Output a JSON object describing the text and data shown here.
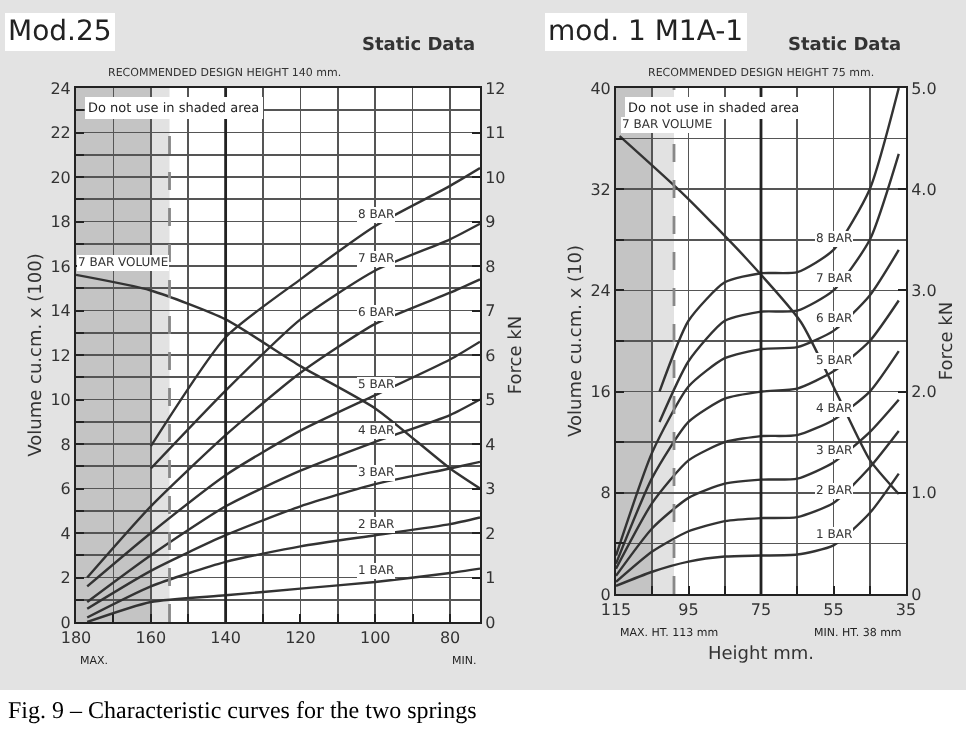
{
  "chart_data": [
    {
      "type": "line",
      "title": "Mod.25",
      "subtitle": "Static Data",
      "ylabel": "Volume cu.cm. x (100)",
      "y2label": "Force kN",
      "xlim": [
        180,
        72
      ],
      "xticks": [
        180,
        {
          "value": 170,
          "label": null
        },
        160,
        {
          "value": 150,
          "label": null
        },
        140,
        {
          "value": 130,
          "label": null
        },
        120,
        {
          "value": 110,
          "label": null
        },
        100,
        {
          "value": 90,
          "label": null
        },
        80
      ],
      "ylim": [
        0,
        24
      ],
      "yticks": [
        0,
        {
          "value": 1,
          "label": null
        },
        2,
        {
          "value": 3,
          "label": null
        },
        4,
        {
          "value": 5,
          "label": null
        },
        6,
        {
          "value": 7,
          "label": null
        },
        8,
        {
          "value": 9,
          "label": null
        },
        10,
        {
          "value": 11,
          "label": null
        },
        12,
        {
          "value": 13,
          "label": null
        },
        14,
        {
          "value": 15,
          "label": null
        },
        16,
        {
          "value": 17,
          "label": null
        },
        18,
        {
          "value": 19,
          "label": null
        },
        20,
        {
          "value": 21,
          "label": null
        },
        22,
        {
          "value": 23,
          "label": null
        },
        24
      ],
      "y2lim": [
        0,
        12
      ],
      "y2ticks": [
        0,
        1,
        2,
        3,
        4,
        5,
        6,
        7,
        8,
        9,
        10,
        11,
        12
      ],
      "grid": true,
      "series": [
        {
          "name": "7 BAR VOLUME",
          "color": "#333333",
          "axis": "y",
          "x": [
            180,
            160,
            140,
            120,
            100,
            80,
            72
          ],
          "values": [
            15.6,
            14.9,
            13.6,
            11.5,
            9.6,
            6.9,
            6.0
          ]
        },
        {
          "name": "1 BAR",
          "color": "#333333",
          "axis": "y2",
          "x": [
            177,
            160,
            140,
            120,
            100,
            80,
            72
          ],
          "values": [
            0.0,
            0.45,
            0.6,
            0.75,
            0.9,
            1.1,
            1.2
          ]
        },
        {
          "name": "2 BAR",
          "color": "#333333",
          "axis": "y2",
          "x": [
            177,
            160,
            140,
            120,
            100,
            80,
            72
          ],
          "values": [
            0.1,
            0.8,
            1.35,
            1.7,
            1.95,
            2.2,
            2.35
          ]
        },
        {
          "name": "3 BAR",
          "color": "#333333",
          "axis": "y2",
          "x": [
            177,
            160,
            140,
            120,
            100,
            80,
            72
          ],
          "values": [
            0.3,
            1.15,
            1.95,
            2.6,
            3.1,
            3.45,
            3.6
          ]
        },
        {
          "name": "4 BAR",
          "color": "#333333",
          "axis": "y2",
          "x": [
            177,
            160,
            140,
            120,
            100,
            80,
            72
          ],
          "values": [
            0.45,
            1.5,
            2.6,
            3.4,
            4.05,
            4.65,
            5.0
          ]
        },
        {
          "name": "5 BAR",
          "color": "#333333",
          "axis": "y2",
          "x": [
            177,
            160,
            140,
            120,
            100,
            80,
            72
          ],
          "values": [
            0.8,
            2.0,
            3.3,
            4.3,
            5.1,
            5.9,
            6.3
          ]
        },
        {
          "name": "6 BAR",
          "color": "#333333",
          "axis": "y2",
          "x": [
            177,
            160,
            140,
            120,
            100,
            80,
            72
          ],
          "values": [
            1.0,
            2.6,
            4.2,
            5.6,
            6.7,
            7.4,
            7.7
          ]
        },
        {
          "name": "7 BAR",
          "color": "#333333",
          "axis": "y2",
          "x": [
            160,
            140,
            120,
            100,
            80,
            72
          ],
          "values": [
            3.45,
            5.2,
            6.8,
            7.9,
            8.6,
            8.95
          ]
        },
        {
          "name": "8 BAR",
          "color": "#333333",
          "axis": "y2",
          "x": [
            160,
            140,
            120,
            100,
            80,
            72
          ],
          "values": [
            3.95,
            6.4,
            7.7,
            8.9,
            9.8,
            10.2
          ]
        }
      ],
      "bands": [
        {
          "axis": "x",
          "from": 180,
          "to": 160,
          "label": "Do not use in shaded area",
          "color": "#c4c4c4"
        },
        {
          "axis": "x",
          "from": 160,
          "to": 155,
          "color": "#e2e2e2"
        }
      ],
      "ref_lines": [
        {
          "axis": "x",
          "value": 140,
          "label": "RECOMMENDED DESIGN HEIGHT 140 mm."
        },
        {
          "axis": "x",
          "value": 155,
          "color": "#888888",
          "line_style": "dashed"
        }
      ],
      "annotations": [
        "MAX.",
        "MIN.",
        "Fig. 9 – Characteristic curves for the two springs"
      ]
    },
    {
      "type": "line",
      "title": "mod. 1 M1A-1",
      "subtitle": "Static Data",
      "xlabel": "Height mm.",
      "ylabel": "Volume cu.cm. x (10)",
      "y2label": "Force kN",
      "xlim": [
        115,
        35
      ],
      "xticks": [
        115,
        {
          "value": 105,
          "label": null
        },
        95,
        {
          "value": 85,
          "label": null
        },
        75,
        {
          "value": 65,
          "label": null
        },
        55,
        {
          "value": 45,
          "label": null
        },
        35
      ],
      "ylim": [
        0,
        40
      ],
      "yticks": [
        0,
        {
          "value": 4,
          "label": null
        },
        8,
        {
          "value": 12,
          "label": null
        },
        16,
        {
          "value": 20,
          "label": null
        },
        24,
        {
          "value": 28,
          "label": null
        },
        32,
        {
          "value": 36,
          "label": null
        },
        40
      ],
      "y2lim": [
        0,
        5
      ],
      "y2ticks": [
        0,
        {
          "value": 1,
          "label": "1.0"
        },
        {
          "value": 2,
          "label": "2.0"
        },
        {
          "value": 3,
          "label": "3.0"
        },
        {
          "value": 4,
          "label": "4.0"
        },
        {
          "value": 5,
          "label": "5.0"
        }
      ],
      "grid": true,
      "series": [
        {
          "name": "7 BAR VOLUME",
          "color": "#333333",
          "axis": "y",
          "x": [
            114,
            96,
            79,
            64,
            54,
            45,
            37
          ],
          "values": [
            36.2,
            31.5,
            26.5,
            21.5,
            15.8,
            10.6,
            7.9
          ]
        },
        {
          "name": "1 BAR",
          "color": "#333333",
          "axis": "y2",
          "x": [
            115,
            105,
            95,
            85,
            75,
            65,
            55,
            45,
            37
          ],
          "values": [
            0.08,
            0.22,
            0.32,
            0.37,
            0.38,
            0.39,
            0.48,
            0.8,
            1.19
          ]
        },
        {
          "name": "2 BAR",
          "color": "#333333",
          "axis": "y2",
          "x": [
            115,
            105,
            95,
            85,
            75,
            65,
            55,
            45,
            37
          ],
          "values": [
            0.12,
            0.42,
            0.62,
            0.72,
            0.75,
            0.76,
            0.9,
            1.25,
            1.61
          ]
        },
        {
          "name": "3 BAR",
          "color": "#333333",
          "axis": "y2",
          "x": [
            115,
            105,
            95,
            85,
            75,
            65,
            55,
            45,
            37
          ],
          "values": [
            0.18,
            0.65,
            0.95,
            1.09,
            1.13,
            1.14,
            1.3,
            1.6,
            1.92
          ]
        },
        {
          "name": "4 BAR",
          "color": "#333333",
          "axis": "y2",
          "x": [
            115,
            105,
            95,
            85,
            75,
            65,
            55,
            45,
            37
          ],
          "values": [
            0.25,
            0.9,
            1.32,
            1.5,
            1.56,
            1.57,
            1.72,
            2.0,
            2.4
          ]
        },
        {
          "name": "5 BAR",
          "color": "#333333",
          "axis": "y2",
          "x": [
            115,
            105,
            95,
            85,
            75,
            65,
            55,
            45,
            37
          ],
          "values": [
            0.3,
            1.15,
            1.7,
            1.93,
            2.0,
            2.03,
            2.2,
            2.5,
            2.9
          ]
        },
        {
          "name": "6 BAR",
          "color": "#333333",
          "axis": "y2",
          "x": [
            115,
            105,
            95,
            85,
            75,
            65,
            55,
            45,
            37
          ],
          "values": [
            0.38,
            1.4,
            2.05,
            2.33,
            2.42,
            2.44,
            2.6,
            2.95,
            3.4
          ]
        },
        {
          "name": "7 BAR",
          "color": "#333333",
          "axis": "y2",
          "x": [
            103,
            95,
            85,
            75,
            65,
            55,
            45,
            37
          ],
          "values": [
            1.7,
            2.3,
            2.7,
            2.79,
            2.8,
            3.0,
            3.5,
            4.35
          ]
        },
        {
          "name": "8 BAR",
          "color": "#333333",
          "axis": "y2",
          "x": [
            103,
            95,
            85,
            75,
            65,
            55,
            45,
            37
          ],
          "values": [
            2.0,
            2.7,
            3.08,
            3.17,
            3.18,
            3.4,
            4.0,
            5.0
          ]
        }
      ],
      "bands": [
        {
          "axis": "x",
          "from": 115,
          "to": 105,
          "label": "Do not use in shaded area",
          "color": "#c4c4c4"
        },
        {
          "axis": "x",
          "from": 105,
          "to": 99,
          "color": "#e2e2e2"
        }
      ],
      "ref_lines": [
        {
          "axis": "x",
          "value": 75,
          "label": "RECOMMENDED DESIGN HEIGHT 75 mm."
        },
        {
          "axis": "x",
          "value": 99,
          "color": "#888888",
          "line_style": "dashed"
        }
      ],
      "annotations": [
        "MAX. HT. 113 mm",
        "MIN. HT. 38 mm"
      ]
    }
  ]
}
